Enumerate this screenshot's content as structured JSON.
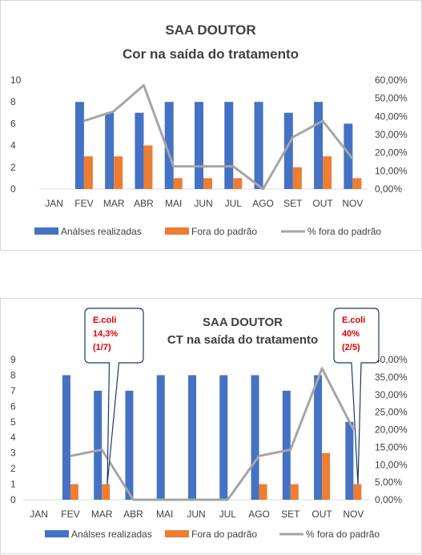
{
  "chart_data": [
    {
      "type": "bar",
      "title": "SAA DOUTOR",
      "subtitle": "Cor na saída do tratamento",
      "categories": [
        "JAN",
        "FEV",
        "MAR",
        "ABR",
        "MAI",
        "JUN",
        "JUL",
        "AGO",
        "SET",
        "OUT",
        "NOV"
      ],
      "series": [
        {
          "name": "Análses realizadas",
          "type": "bar",
          "axis": "left",
          "color": "#4472C4",
          "values": [
            0,
            8,
            7,
            7,
            8,
            8,
            8,
            8,
            7,
            8,
            6
          ]
        },
        {
          "name": "Fora do padrão",
          "type": "bar",
          "axis": "left",
          "color": "#ED7D31",
          "values": [
            0,
            3,
            3,
            4,
            1,
            1,
            1,
            0,
            2,
            3,
            1
          ]
        },
        {
          "name": "% fora do padrão",
          "type": "line",
          "axis": "right",
          "color": "#A5A5A5",
          "values": [
            null,
            37.5,
            42.86,
            57.14,
            12.5,
            12.5,
            12.5,
            0,
            28.57,
            37.5,
            16.67
          ]
        }
      ],
      "ylim": [
        0,
        10
      ],
      "yticks": [
        "0",
        "2",
        "4",
        "6",
        "8",
        "10"
      ],
      "y2lim": [
        0,
        60
      ],
      "y2ticks": [
        "0,00%",
        "10,00%",
        "20,00%",
        "30,00%",
        "40,00%",
        "50,00%",
        "60,00%"
      ],
      "legend": "bottom",
      "grid": false
    },
    {
      "type": "bar",
      "title": "SAA DOUTOR",
      "subtitle": "CT na saída do tratamento",
      "categories": [
        "JAN",
        "FEV",
        "MAR",
        "ABR",
        "MAI",
        "JUN",
        "JUL",
        "AGO",
        "SET",
        "OUT",
        "NOV"
      ],
      "series": [
        {
          "name": "Análses realizadas",
          "type": "bar",
          "axis": "left",
          "color": "#4472C4",
          "values": [
            0,
            8,
            7,
            7,
            8,
            8,
            8,
            8,
            7,
            8,
            5
          ]
        },
        {
          "name": "Fora do padrão",
          "type": "bar",
          "axis": "left",
          "color": "#ED7D31",
          "values": [
            0,
            1,
            1,
            0,
            0,
            0,
            0,
            1,
            1,
            3,
            1
          ]
        },
        {
          "name": "% fora do padrão",
          "type": "line",
          "axis": "right",
          "color": "#A5A5A5",
          "values": [
            null,
            12.5,
            14.29,
            0,
            0,
            0,
            0,
            12.5,
            14.29,
            37.5,
            20
          ]
        }
      ],
      "ylim": [
        0,
        9
      ],
      "yticks": [
        "0",
        "1",
        "2",
        "3",
        "4",
        "5",
        "6",
        "7",
        "8",
        "9"
      ],
      "y2lim": [
        0,
        40
      ],
      "y2ticks": [
        "0,00%",
        "5,00%",
        "10,00%",
        "15,00%",
        "20,00%",
        "25,00%",
        "30,00%",
        "35,00%",
        "40,00%"
      ],
      "legend": "bottom",
      "grid": false,
      "annotations": [
        {
          "lines": [
            "E.coli",
            "14,3%",
            "(1/7)"
          ],
          "category": "MAR"
        },
        {
          "lines": [
            "E.coli",
            "40%",
            "(2/5)"
          ],
          "category": "NOV"
        }
      ]
    }
  ]
}
